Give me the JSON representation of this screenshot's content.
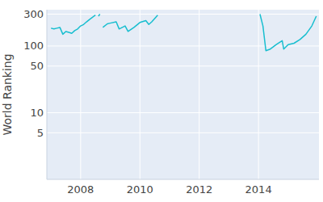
{
  "chart_data": {
    "type": "line",
    "y_label": "World Ranking",
    "log": "y",
    "grid": true,
    "color": "#17becf",
    "x": [
      2007.0,
      2007.1,
      2007.2,
      2007.3,
      2007.4,
      2007.5,
      2007.6,
      2007.7,
      2007.8,
      2007.9,
      2008.0,
      2008.1,
      2008.2,
      2008.3,
      2008.4,
      2008.5,
      2008.55,
      2008.6,
      2008.65,
      2008.7,
      2008.75,
      2008.9,
      2009.0,
      2009.2,
      2009.3,
      2009.5,
      2009.6,
      2009.8,
      2010.0,
      2010.2,
      2010.3,
      2010.4,
      2010.6,
      2012.0,
      2014.05,
      2014.15,
      2014.25,
      2014.4,
      2014.6,
      2014.8,
      2014.85,
      2015.0,
      2015.2,
      2015.4,
      2015.6,
      2015.8,
      2015.95
    ],
    "values": [
      185,
      180,
      185,
      190,
      150,
      165,
      160,
      155,
      170,
      180,
      200,
      210,
      230,
      250,
      270,
      290,
      null,
      280,
      300,
      null,
      190,
      215,
      220,
      230,
      180,
      200,
      165,
      190,
      225,
      240,
      210,
      230,
      290,
      null,
      300,
      200,
      85,
      90,
      105,
      120,
      90,
      105,
      110,
      125,
      150,
      200,
      280
    ],
    "xlim": [
      2006.86,
      2016.04
    ],
    "xticks": [
      2008,
      2010,
      2012,
      2014
    ],
    "ylim": [
      1,
      350
    ],
    "yticks": [
      5,
      10,
      50,
      100,
      300
    ]
  }
}
